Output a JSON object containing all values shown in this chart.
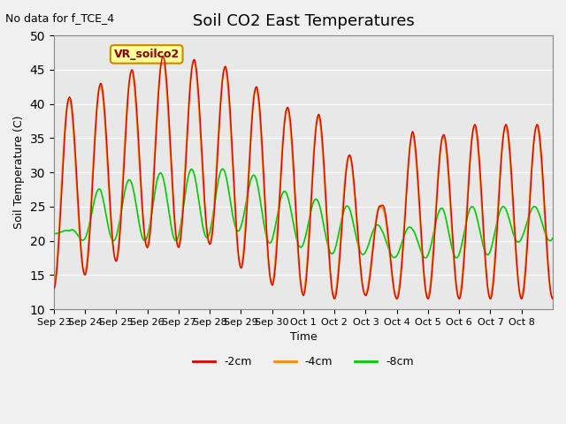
{
  "title": "Soil CO2 East Temperatures",
  "no_data_text": "No data for f_TCE_4",
  "ylabel": "Soil Temperature (C)",
  "xlabel": "Time",
  "ylim": [
    10,
    50
  ],
  "background_color": "#e8e8e8",
  "legend_box_text": "VR_soilco2",
  "legend_box_color": "#ffff99",
  "legend_box_border": "#cc8800",
  "colors": {
    "-2cm": "#dd0000",
    "-4cm": "#ff8800",
    "-8cm": "#00cc00"
  },
  "x_tick_labels": [
    "Sep 23",
    "Sep 24",
    "Sep 25",
    "Sep 26",
    "Sep 27",
    "Sep 28",
    "Sep 29",
    "Sep 30",
    "Oct 1",
    "Oct 2",
    "Oct 3",
    "Oct 4",
    "Oct 5",
    "Oct 6",
    "Oct 7",
    "Oct 8"
  ],
  "n_days": 16,
  "pts_per_day": 48
}
